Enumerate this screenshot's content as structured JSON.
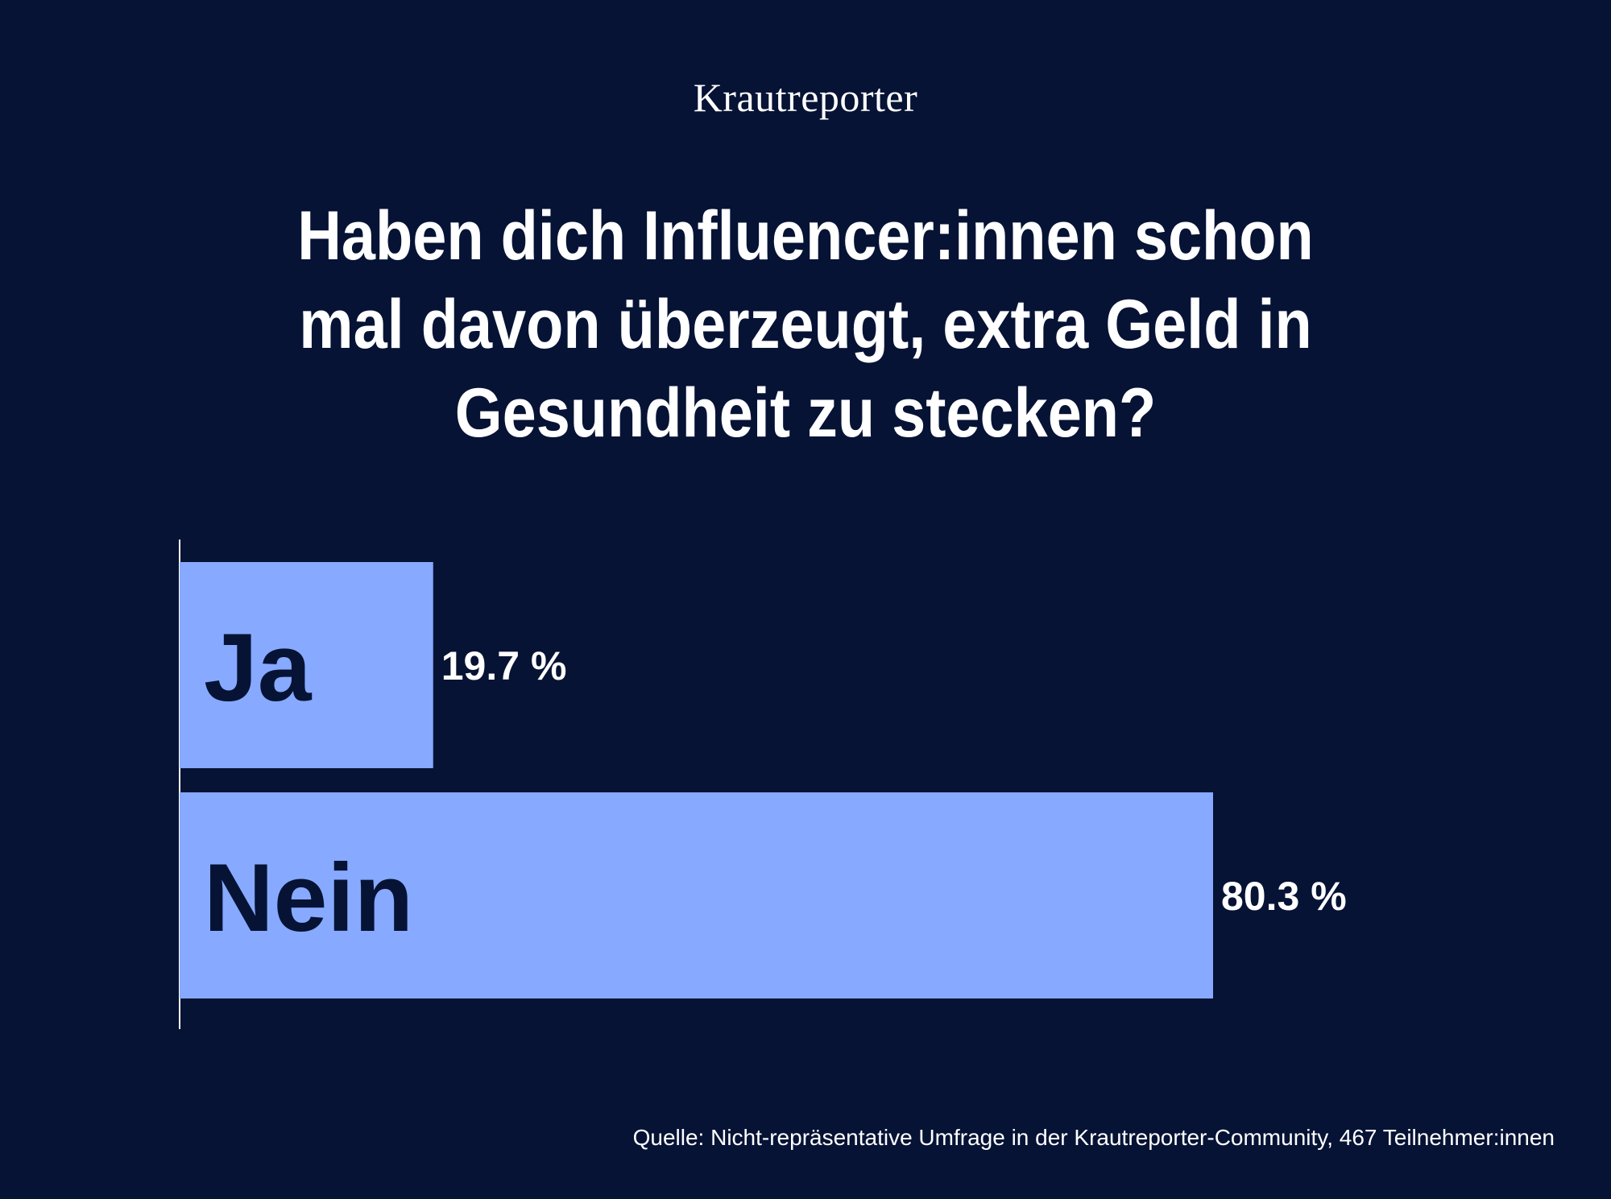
{
  "brand": {
    "logo_text": "Krautreporter"
  },
  "colors": {
    "background": "#061335",
    "bar": "#87a9ff",
    "text": "#ffffff",
    "bar_label": "#061335"
  },
  "chart_data": {
    "type": "bar",
    "orientation": "horizontal",
    "title": "Haben dich Influencer:innen schon mal davon überzeugt, extra Geld in Gesundheit zu stecken?",
    "categories": [
      "Ja",
      "Nein"
    ],
    "values": [
      19.7,
      80.3
    ],
    "value_labels": [
      "19.7 %",
      "80.3 %"
    ],
    "unit": "%",
    "xlim": [
      0,
      100
    ],
    "grid": false,
    "legend": "none"
  },
  "footer": {
    "source": "Quelle: Nicht-repräsentative Umfrage in der Krautreporter-Community, 467 Teilnehmer:innen"
  }
}
